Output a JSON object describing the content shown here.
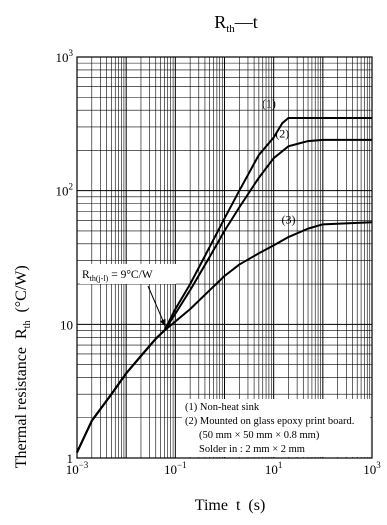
{
  "chart_data": {
    "type": "line",
    "title": "R_th — t",
    "title_main": "R",
    "title_sub": "th",
    "title_rest": "—t",
    "xlabel": "Time  t  (s)",
    "ylabel_main": "Thermal resistance  R",
    "ylabel_sub": "th",
    "ylabel_unit": "(°C/W)",
    "x_scale": "log",
    "y_scale": "log",
    "xlim": [
      0.001,
      1000
    ],
    "ylim": [
      1,
      1000
    ],
    "grid": true,
    "x_ticks": [
      {
        "base": "10",
        "exp": "−3"
      },
      {
        "base": "10",
        "exp": "−1"
      },
      {
        "base": "10",
        "exp": "1"
      },
      {
        "base": "10",
        "exp": "3"
      }
    ],
    "y_ticks": [
      {
        "value": 1,
        "label": "1"
      },
      {
        "value": 10,
        "label": "10"
      },
      {
        "value": 100,
        "base": "10",
        "exp": "2"
      },
      {
        "value": 1000,
        "base": "10",
        "exp": "3"
      }
    ],
    "series": [
      {
        "name": "(1)",
        "points": [
          [
            0.001,
            1.1
          ],
          [
            0.002,
            1.9
          ],
          [
            0.005,
            3.0
          ],
          [
            0.01,
            4.3
          ],
          [
            0.02,
            5.8
          ],
          [
            0.04,
            7.8
          ],
          [
            0.06,
            9.0
          ],
          [
            0.1,
            13
          ],
          [
            0.2,
            20
          ],
          [
            0.5,
            38
          ],
          [
            1,
            62
          ],
          [
            2,
            100
          ],
          [
            5,
            185
          ],
          [
            10,
            250
          ],
          [
            15,
            320
          ],
          [
            20,
            350
          ],
          [
            50,
            350
          ],
          [
            100,
            350
          ],
          [
            1000,
            350
          ]
        ]
      },
      {
        "name": "(2)",
        "points": [
          [
            0.001,
            1.1
          ],
          [
            0.002,
            1.9
          ],
          [
            0.005,
            3.0
          ],
          [
            0.01,
            4.3
          ],
          [
            0.02,
            5.8
          ],
          [
            0.04,
            7.8
          ],
          [
            0.06,
            9.0
          ],
          [
            0.1,
            12
          ],
          [
            0.2,
            18
          ],
          [
            0.5,
            32
          ],
          [
            1,
            50
          ],
          [
            2,
            75
          ],
          [
            5,
            125
          ],
          [
            10,
            175
          ],
          [
            20,
            215
          ],
          [
            50,
            235
          ],
          [
            100,
            240
          ],
          [
            1000,
            240
          ]
        ]
      },
      {
        "name": "(3)",
        "points": [
          [
            0.001,
            1.1
          ],
          [
            0.002,
            1.9
          ],
          [
            0.005,
            3.0
          ],
          [
            0.01,
            4.3
          ],
          [
            0.02,
            5.8
          ],
          [
            0.04,
            7.8
          ],
          [
            0.06,
            9.0
          ],
          [
            0.1,
            10.5
          ],
          [
            0.2,
            13
          ],
          [
            0.5,
            18
          ],
          [
            1,
            23
          ],
          [
            2,
            28
          ],
          [
            5,
            34
          ],
          [
            10,
            39
          ],
          [
            20,
            45
          ],
          [
            50,
            52
          ],
          [
            100,
            56
          ],
          [
            1000,
            58
          ]
        ]
      }
    ],
    "annotation": {
      "label_main": "R",
      "label_sub": "th(j-l)",
      "label_rest": " = 9°C/W",
      "x": 0.06,
      "y": 9
    },
    "notes": [
      "(1) Non-heat sink",
      "(2) Mounted on glass epoxy print board.",
      "(50 mm × 50 mm × 0.8 mm)",
      "Solder in : 2 mm × 2 mm"
    ]
  }
}
